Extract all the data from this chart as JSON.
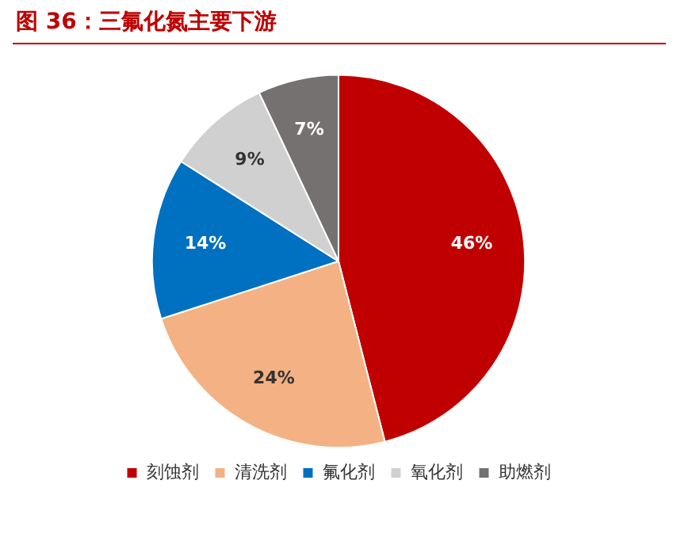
{
  "chart_data": {
    "type": "pie",
    "title": "图 36：三氟化氮主要下游",
    "categories": [
      "刻蚀剂",
      "清洗剂",
      "氟化剂",
      "氧化剂",
      "助燃剂"
    ],
    "values": [
      46,
      24,
      14,
      9,
      7
    ],
    "colors": [
      "#c00000",
      "#f4b183",
      "#0070c0",
      "#d0d0d0",
      "#767171"
    ],
    "value_labels": [
      "46%",
      "24%",
      "14%",
      "9%",
      "7%"
    ],
    "legend": "bottom"
  }
}
